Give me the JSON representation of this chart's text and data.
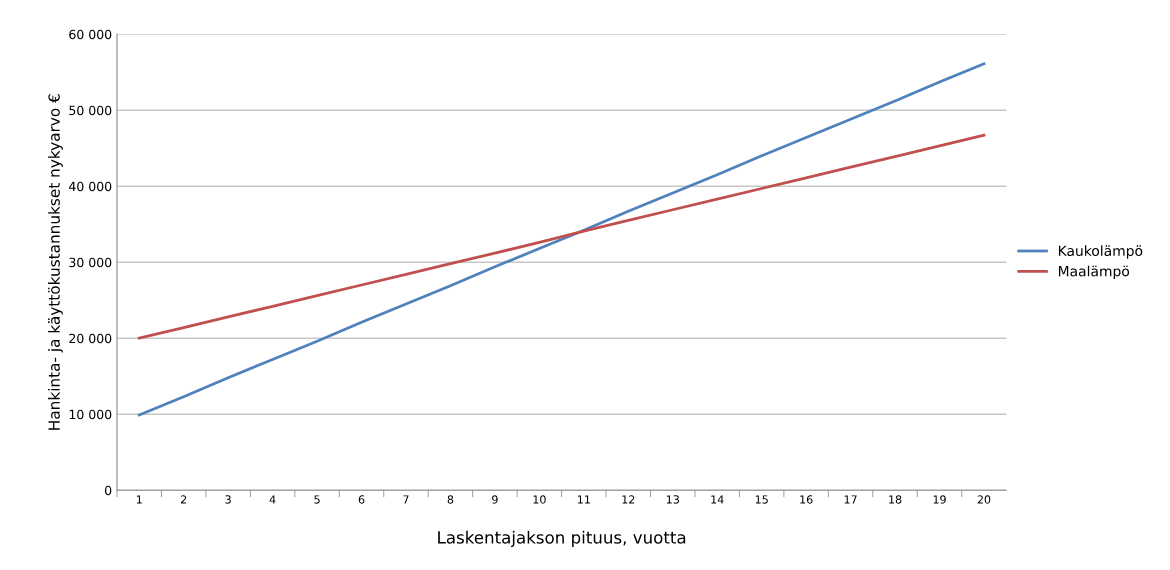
{
  "chart_data": {
    "type": "line",
    "xlabel": "Laskentajakson pituus, vuotta",
    "ylabel": "Hankinta- ja käyttökustannukset nykyarvo €",
    "categories": [
      "1",
      "2",
      "3",
      "4",
      "5",
      "6",
      "7",
      "8",
      "9",
      "10",
      "11",
      "12",
      "13",
      "14",
      "15",
      "16",
      "17",
      "18",
      "19",
      "20"
    ],
    "series": [
      {
        "name": "Kaukolämpö",
        "color": "#4f81bd",
        "values": [
          9900,
          12300,
          14800,
          17200,
          19600,
          22100,
          24500,
          26900,
          29400,
          31800,
          34200,
          36700,
          39100,
          41500,
          44000,
          46400,
          48800,
          51200,
          53700,
          56100
        ]
      },
      {
        "name": "Maalämpö",
        "color": "#c0504d",
        "values": [
          20000,
          21400,
          22800,
          24200,
          25600,
          27000,
          28400,
          29800,
          31200,
          32600,
          34100,
          35500,
          36900,
          38300,
          39700,
          41100,
          42500,
          43900,
          45300,
          46700
        ]
      }
    ],
    "ylim": [
      0,
      60000
    ],
    "yticks": [
      {
        "value": 0,
        "label": "0"
      },
      {
        "value": 10000,
        "label": "10 000"
      },
      {
        "value": 20000,
        "label": "20 000"
      },
      {
        "value": 30000,
        "label": "30 000"
      },
      {
        "value": 40000,
        "label": "40 000"
      },
      {
        "value": 50000,
        "label": "50 000"
      },
      {
        "value": 60000,
        "label": "60 000"
      }
    ],
    "grid": "y",
    "legend": "right",
    "marker": "none",
    "line_style": "solid"
  }
}
